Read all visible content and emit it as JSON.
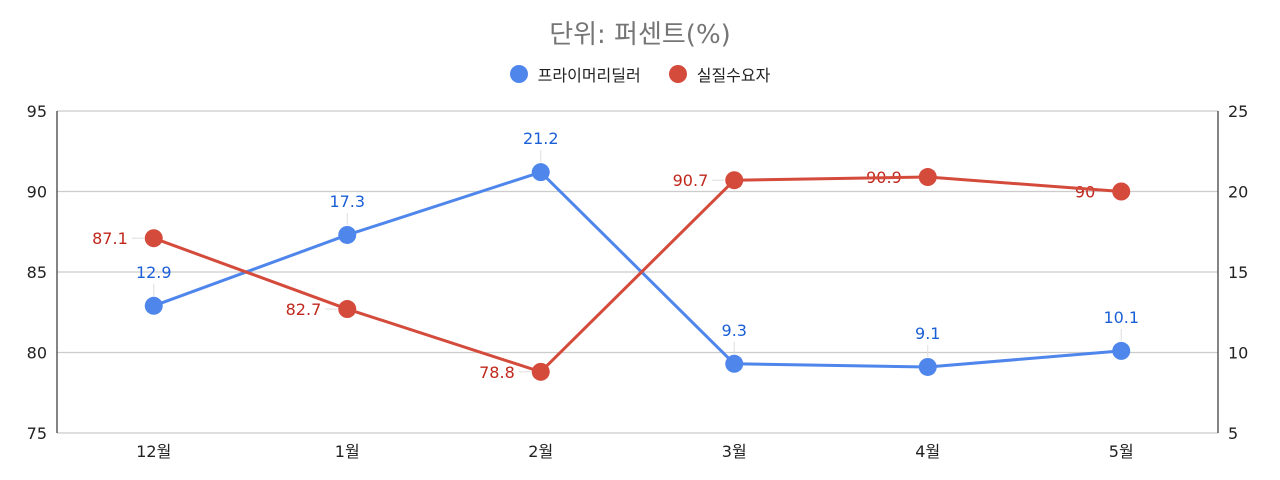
{
  "chart_data": {
    "type": "line",
    "title": "단위: 퍼센트(%)",
    "categories": [
      "12월",
      "1월",
      "2월",
      "3월",
      "4월",
      "5월"
    ],
    "series": [
      {
        "name": "프라이머리딜러",
        "axis": "right",
        "color": "#4f86ec",
        "label_color": "#1a5fd6",
        "values": [
          12.9,
          17.3,
          21.2,
          9.3,
          9.1,
          10.1
        ]
      },
      {
        "name": "실질수요자",
        "axis": "left",
        "color": "#d44b3c",
        "label_color": "#c0271c",
        "values": [
          87.1,
          82.7,
          78.8,
          90.7,
          90.9,
          90
        ]
      }
    ],
    "y_left": {
      "min": 75,
      "max": 95,
      "ticks": [
        75,
        80,
        85,
        90,
        95
      ]
    },
    "y_right": {
      "min": 5,
      "max": 25,
      "ticks": [
        5,
        10,
        15,
        20,
        25
      ]
    },
    "xlabel": "",
    "ylabel": "",
    "grid": true,
    "legend_position": "top"
  }
}
